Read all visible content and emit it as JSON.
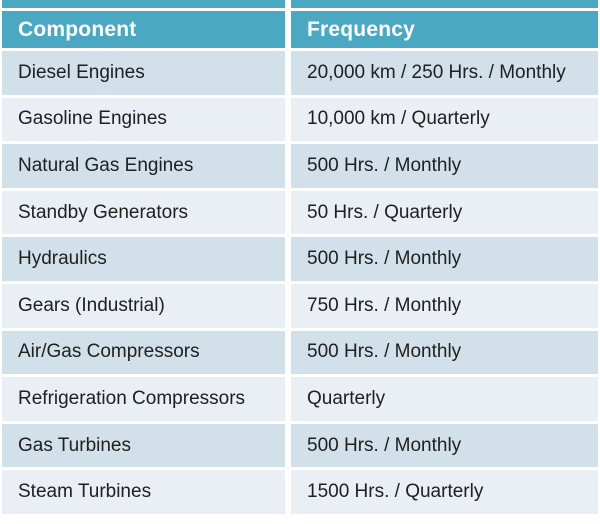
{
  "table": {
    "columns": [
      "Component",
      "Frequency"
    ],
    "rows": [
      {
        "component": "Diesel Engines",
        "frequency": "20,000 km / 250 Hrs. / Monthly"
      },
      {
        "component": "Gasoline Engines",
        "frequency": "10,000 km / Quarterly"
      },
      {
        "component": "Natural Gas Engines",
        "frequency": "500 Hrs. / Monthly"
      },
      {
        "component": "Standby Generators",
        "frequency": "50 Hrs. / Quarterly"
      },
      {
        "component": "Hydraulics",
        "frequency": "500 Hrs. / Monthly"
      },
      {
        "component": "Gears (Industrial)",
        "frequency": "750 Hrs. / Monthly"
      },
      {
        "component": "Air/Gas Compressors",
        "frequency": "500 Hrs. / Monthly"
      },
      {
        "component": "Refrigeration Compressors",
        "frequency": "Quarterly"
      },
      {
        "component": "Gas Turbines",
        "frequency": "500 Hrs. / Monthly"
      },
      {
        "component": "Steam Turbines",
        "frequency": "1500 Hrs. / Quarterly"
      }
    ]
  },
  "theme": {
    "header_bg": "#4BA8C3",
    "header_text": "#FFFFFF",
    "row_color_odd": "#D2E1E9",
    "row_color_even": "#E9EFF4",
    "divider": "#FFFFFF",
    "body_text": "#202020"
  },
  "chart_data": {
    "type": "table",
    "columns": [
      "Component",
      "Frequency"
    ],
    "rows": [
      [
        "Diesel Engines",
        "20,000 km / 250 Hrs. / Monthly"
      ],
      [
        "Gasoline Engines",
        "10,000 km / Quarterly"
      ],
      [
        "Natural Gas Engines",
        "500 Hrs. / Monthly"
      ],
      [
        "Standby Generators",
        "50 Hrs. / Quarterly"
      ],
      [
        "Hydraulics",
        "500 Hrs. / Monthly"
      ],
      [
        "Gears (Industrial)",
        "750 Hrs. / Monthly"
      ],
      [
        "Air/Gas Compressors",
        "500 Hrs. / Monthly"
      ],
      [
        "Refrigeration Compressors",
        "Quarterly"
      ],
      [
        "Gas Turbines",
        "500 Hrs. / Monthly"
      ],
      [
        "Steam Turbines",
        "1500 Hrs. / Quarterly"
      ]
    ],
    "layout_hints": {
      "header_style": "teal band with thin cap strip above",
      "banding": "alternating light blue-gray rows separated by white gutters"
    }
  }
}
